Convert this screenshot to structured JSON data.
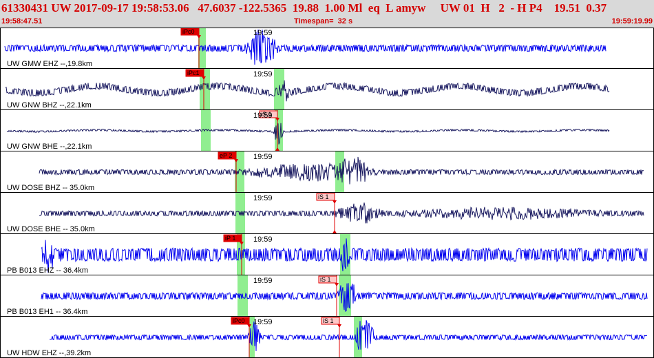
{
  "header": {
    "title": "61330431 UW 2017-09-17 19:58:53.06   47.6037 -122.5365  19.88  1.00 Ml  eq  L amyw     UW 01  H   2  - H P4    19.51  0.37",
    "start_time": "19:58:47.51",
    "timespan": "Timespan=  32 s",
    "end_time": "19:59:19.99"
  },
  "colors": {
    "header_bg": "#d9d9d9",
    "header_text": "#d40000",
    "trace_blue": "#0000ee",
    "trace_dark": "#1a1a60",
    "pick": "#e00000",
    "window_green": "#90ee90"
  },
  "channels": [
    {
      "label": "UW GMW EHZ --,19.8km",
      "time_label": "19:59",
      "picks": [
        {
          "label": "iPc0",
          "type": "P"
        }
      ]
    },
    {
      "label": "UW GNW BHZ --,22.1km",
      "time_label": "19:59",
      "picks": [
        {
          "label": "iPc1",
          "type": "P"
        }
      ]
    },
    {
      "label": "UW GNW BHE --,22.1km",
      "time_label": "19:59",
      "picks": [
        {
          "label": "iS 1",
          "type": "S"
        }
      ]
    },
    {
      "label": "UW DOSE BHZ -- 35.0km",
      "time_label": "19:59",
      "picks": [
        {
          "label": "eP 2",
          "type": "P"
        }
      ]
    },
    {
      "label": "UW DOSE BHE -- 35.0km",
      "time_label": "19:59",
      "picks": [
        {
          "label": "iS 1",
          "type": "S"
        }
      ]
    },
    {
      "label": "PB B013 EHZ -- 36.4km",
      "time_label": "19:59",
      "picks": [
        {
          "label": "iP 1",
          "type": "P"
        }
      ]
    },
    {
      "label": "PB B013 EH1 -- 36.4km",
      "time_label": "19:59",
      "picks": [
        {
          "label": "iS 1",
          "type": "S"
        }
      ]
    },
    {
      "label": "UW HDW EHZ --,39.2km",
      "time_label": "19:59",
      "picks": [
        {
          "label": "iPc0",
          "type": "P"
        },
        {
          "label": "iS 1",
          "type": "S"
        }
      ]
    }
  ]
}
